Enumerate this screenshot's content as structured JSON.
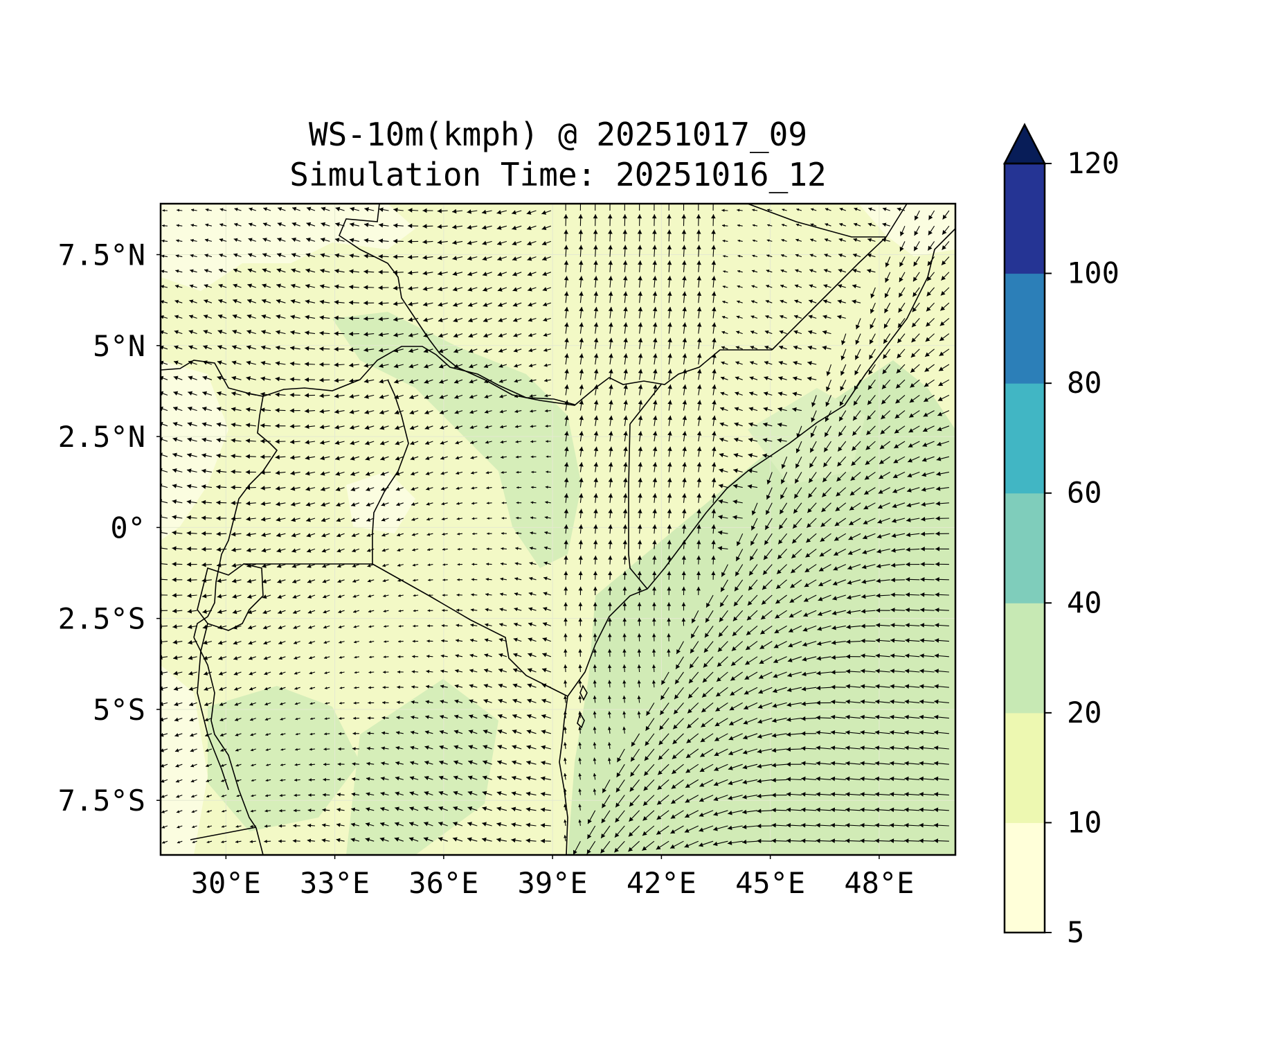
{
  "title": {
    "line1": "WS-10m(kmph) @ 20251017_09",
    "line2": "Simulation Time: 20251016_12"
  },
  "map": {
    "lon_range": [
      28.2,
      50.1
    ],
    "lat_range": [
      -9.0,
      8.9
    ],
    "x_ticks": [
      {
        "value": 30,
        "label": "30°E"
      },
      {
        "value": 33,
        "label": "33°E"
      },
      {
        "value": 36,
        "label": "36°E"
      },
      {
        "value": 39,
        "label": "39°E"
      },
      {
        "value": 42,
        "label": "42°E"
      },
      {
        "value": 45,
        "label": "45°E"
      },
      {
        "value": 48,
        "label": "48°E"
      }
    ],
    "y_ticks": [
      {
        "value": 7.5,
        "label": "7.5°N"
      },
      {
        "value": 5,
        "label": "5°N"
      },
      {
        "value": 2.5,
        "label": "2.5°N"
      },
      {
        "value": 0,
        "label": "0°"
      },
      {
        "value": -2.5,
        "label": "2.5°S"
      },
      {
        "value": -5,
        "label": "5°S"
      },
      {
        "value": -7.5,
        "label": "7.5°S"
      }
    ],
    "gridlines": true,
    "background_color": "#f3f9c6",
    "border_color": "#000000",
    "wind_arrows": true
  },
  "colorbar": {
    "extend": "max",
    "levels": [
      {
        "from": 5,
        "to": 10,
        "color": "#ffffd9"
      },
      {
        "from": 10,
        "to": 20,
        "color": "#edf8b1"
      },
      {
        "from": 20,
        "to": 40,
        "color": "#c7e9b4"
      },
      {
        "from": 40,
        "to": 60,
        "color": "#7fcdbb"
      },
      {
        "from": 60,
        "to": 80,
        "color": "#41b6c4"
      },
      {
        "from": 80,
        "to": 100,
        "color": "#2c7fb8"
      },
      {
        "from": 100,
        "to": 120,
        "color": "#253494"
      }
    ],
    "extend_color": "#081d58",
    "tick_labels": [
      "5",
      "10",
      "20",
      "40",
      "60",
      "80",
      "100",
      "120"
    ]
  }
}
